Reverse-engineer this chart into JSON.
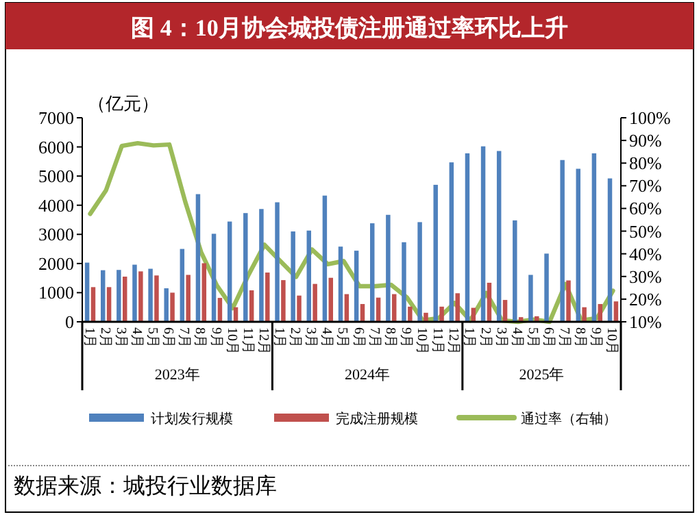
{
  "chart_data": {
    "type": "bar",
    "title": "图 4：10月协会城投债注册通过率环比上升",
    "ylabel": "（亿元）",
    "categories": [
      "1月",
      "2月",
      "3月",
      "4月",
      "5月",
      "6月",
      "7月",
      "8月",
      "9月",
      "10月",
      "11月",
      "12月",
      "1月",
      "2月",
      "3月",
      "4月",
      "5月",
      "6月",
      "7月",
      "8月",
      "9月",
      "10月",
      "11月",
      "12月",
      "1月",
      "2月",
      "3月",
      "4月",
      "5月",
      "6月",
      "7月",
      "8月",
      "9月",
      "10月"
    ],
    "series": [
      {
        "name": "计划发行规模",
        "color": "#4f81bd",
        "values": [
          2030,
          1770,
          1780,
          1960,
          1820,
          1150,
          2500,
          4380,
          3020,
          3440,
          3730,
          3870,
          4100,
          3100,
          3130,
          4330,
          2580,
          2440,
          3380,
          3670,
          2730,
          3420,
          4700,
          5470,
          5780,
          6020,
          5860,
          3480,
          1610,
          2340,
          5550,
          5250,
          5780,
          4920
        ]
      },
      {
        "name": "完成注册规模",
        "color": "#c0504d",
        "values": [
          1190,
          1190,
          1550,
          1730,
          1590,
          1000,
          1610,
          2010,
          820,
          500,
          1080,
          1690,
          1430,
          900,
          1300,
          1510,
          950,
          610,
          830,
          950,
          520,
          310,
          520,
          980,
          480,
          1340,
          750,
          160,
          190,
          null,
          1420,
          500,
          610,
          700
        ]
      },
      {
        "name": "通过率（右轴）",
        "type": "line",
        "axis": "y2",
        "color": "#9bbb59",
        "values": [
          57.6,
          68,
          87.6,
          88.8,
          87.8,
          88.2,
          63,
          40.8,
          26,
          16,
          30.8,
          44,
          36.8,
          29.8,
          41.9,
          35.4,
          36.8,
          25.7,
          25.7,
          26.3,
          20.7,
          10.6,
          11.6,
          18.3,
          10.6,
          22.7,
          10.6,
          10,
          11,
          10,
          26.7,
          10.6,
          11.6,
          23.7
        ]
      }
    ],
    "ylim": [
      0,
      7000
    ],
    "yticks": [
      0,
      1000,
      2000,
      3000,
      4000,
      5000,
      6000,
      7000
    ],
    "y2lim": [
      10,
      100
    ],
    "y2ticks": [
      {
        "value": 10,
        "label": "10%"
      },
      {
        "value": 20,
        "label": "20%"
      },
      {
        "value": 30,
        "label": "30%"
      },
      {
        "value": 40,
        "label": "40%"
      },
      {
        "value": 50,
        "label": "50%"
      },
      {
        "value": 60,
        "label": "60%"
      },
      {
        "value": 70,
        "label": "70%"
      },
      {
        "value": 80,
        "label": "80%"
      },
      {
        "value": 90,
        "label": "90%"
      },
      {
        "value": 100,
        "label": "100%"
      }
    ],
    "grid": false,
    "legend": "bottom",
    "annotations": [
      "2023年",
      "2024年",
      "2025年",
      "数据来源：城投行业数据库"
    ]
  }
}
